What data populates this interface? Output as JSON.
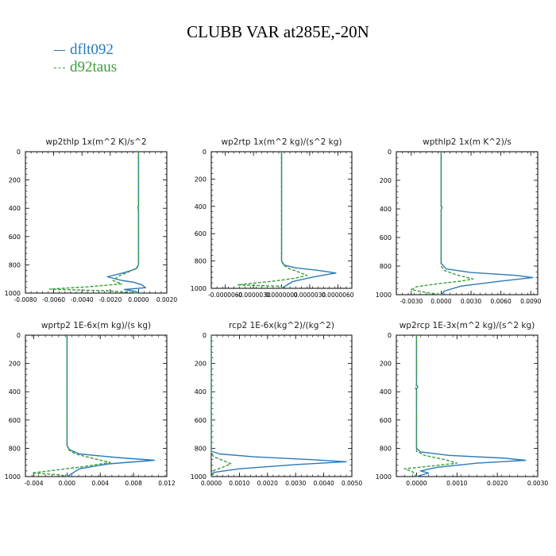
{
  "title": "CLUBB VAR at285E,-20N",
  "legend": [
    {
      "label": "dflt092",
      "color": "#2a7ab9"
    },
    {
      "label": "d92taus",
      "color": "#3a9e3a"
    }
  ],
  "chart_data": [
    {
      "type": "line",
      "title": "wp2thlp   1x(m^2 K)/s^2",
      "ylim": [
        1000,
        0
      ],
      "yticks": [
        "0",
        "200",
        "400",
        "600",
        "800",
        "1000"
      ],
      "xlim": [
        -0.008,
        0.002
      ],
      "xticks": [
        {
          "v": -0.008,
          "label": "-0.0080"
        },
        {
          "v": -0.006,
          "label": "-0.0060"
        },
        {
          "v": -0.004,
          "label": "-0.0040"
        },
        {
          "v": -0.002,
          "label": "-0.0020"
        },
        {
          "v": 0.0,
          "label": "0.0000"
        },
        {
          "v": 0.002,
          "label": "0.0020"
        }
      ],
      "series": [
        {
          "name": "dflt092",
          "points": [
            [
              0,
              0
            ],
            [
              0,
              380
            ],
            [
              -5e-05,
              395
            ],
            [
              0,
              410
            ],
            [
              0,
              800
            ],
            [
              -0.0002,
              830
            ],
            [
              -0.001,
              855
            ],
            [
              -0.0022,
              885
            ],
            [
              -0.0012,
              910
            ],
            [
              -0.0003,
              925
            ],
            [
              0.0002,
              940
            ],
            [
              0.0005,
              962
            ],
            [
              -0.001,
              975
            ],
            [
              -0.0002,
              988
            ],
            [
              0,
              1000
            ]
          ]
        },
        {
          "name": "d92taus",
          "points": [
            [
              0,
              0
            ],
            [
              0,
              800
            ],
            [
              -0.0001,
              820
            ],
            [
              -0.0007,
              850
            ],
            [
              -0.0014,
              880
            ],
            [
              -0.0018,
              912
            ],
            [
              -0.0012,
              935
            ],
            [
              -0.0035,
              955
            ],
            [
              -0.0063,
              972
            ],
            [
              -0.002,
              985
            ],
            [
              0,
              1000
            ]
          ]
        }
      ]
    },
    {
      "type": "line",
      "title": "wp2rtp   1x(m^2 kg)/(s^2 kg)",
      "ylim": [
        1000,
        0
      ],
      "yticks": [
        "0",
        "200",
        "400",
        "600",
        "800",
        "1000"
      ],
      "xlim": [
        -7.5e-06,
        7.5e-06
      ],
      "xticks": [
        {
          "v": -6e-06,
          "label": "-0.0000060"
        },
        {
          "v": -3e-06,
          "label": "-0.0000030"
        },
        {
          "v": 0.0,
          "label": "0.0000000"
        },
        {
          "v": 3e-06,
          "label": "0.0000030"
        },
        {
          "v": 6e-06,
          "label": "0.0000060"
        }
      ],
      "series": [
        {
          "name": "dflt092",
          "points": [
            [
              0,
              0
            ],
            [
              0,
              800
            ],
            [
              3e-07,
              830
            ],
            [
              1.5e-06,
              850
            ],
            [
              4e-06,
              870
            ],
            [
              5.8e-06,
              888
            ],
            [
              3.5e-06,
              915
            ],
            [
              1.2e-06,
              950
            ],
            [
              0,
              1000
            ]
          ]
        },
        {
          "name": "d92taus",
          "points": [
            [
              0,
              0
            ],
            [
              0,
              800
            ],
            [
              2e-07,
              830
            ],
            [
              8e-07,
              855
            ],
            [
              1.8e-06,
              880
            ],
            [
              2.7e-06,
              905
            ],
            [
              1.5e-06,
              925
            ],
            [
              -5e-07,
              945
            ],
            [
              -3e-06,
              962
            ],
            [
              -4.7e-06,
              975
            ],
            [
              0,
              985
            ],
            [
              0,
              1000
            ]
          ]
        }
      ]
    },
    {
      "type": "line",
      "title": "wpthlp2   1x(m K^2)/s",
      "ylim": [
        1000,
        0
      ],
      "yticks": [
        "0",
        "200",
        "400",
        "600",
        "800",
        "1000"
      ],
      "xlim": [
        -0.0045,
        0.0097
      ],
      "xticks": [
        {
          "v": -0.003,
          "label": "-0.0030"
        },
        {
          "v": 0.0,
          "label": "0.0000"
        },
        {
          "v": 0.003,
          "label": "0.0030"
        },
        {
          "v": 0.006,
          "label": "0.0060"
        },
        {
          "v": 0.009,
          "label": "0.0090"
        }
      ],
      "series": [
        {
          "name": "dflt092",
          "points": [
            [
              0,
              0
            ],
            [
              0,
              380
            ],
            [
              0.0001,
              390
            ],
            [
              0,
              405
            ],
            [
              0,
              780
            ],
            [
              0.0005,
              820
            ],
            [
              0.003,
              845
            ],
            [
              0.0075,
              865
            ],
            [
              0.0092,
              880
            ],
            [
              0.006,
              905
            ],
            [
              0.002,
              940
            ],
            [
              0.0003,
              975
            ],
            [
              0,
              1000
            ]
          ]
        },
        {
          "name": "d92taus",
          "points": [
            [
              0,
              0
            ],
            [
              0,
              800
            ],
            [
              0.0003,
              830
            ],
            [
              0.0015,
              860
            ],
            [
              0.0032,
              890
            ],
            [
              0.002,
              905
            ],
            [
              -0.0005,
              925
            ],
            [
              -0.0025,
              945
            ],
            [
              -0.003,
              965
            ],
            [
              -0.0015,
              985
            ],
            [
              0,
              1000
            ]
          ]
        }
      ]
    },
    {
      "type": "line",
      "title": "wprtp2   1E-6x(m kg)/(s kg)",
      "ylim": [
        1000,
        0
      ],
      "yticks": [
        "0",
        "200",
        "400",
        "600",
        "800",
        "1000"
      ],
      "xlim": [
        -0.005,
        0.012
      ],
      "xticks": [
        {
          "v": -0.004,
          "label": "-0.004"
        },
        {
          "v": 0.0,
          "label": "0.000"
        },
        {
          "v": 0.004,
          "label": "0.004"
        },
        {
          "v": 0.008,
          "label": "0.008"
        },
        {
          "v": 0.012,
          "label": "0.012"
        }
      ],
      "series": [
        {
          "name": "dflt092",
          "points": [
            [
              0,
              0
            ],
            [
              0,
              780
            ],
            [
              0.0003,
              810
            ],
            [
              0.0015,
              840
            ],
            [
              0.006,
              865
            ],
            [
              0.0105,
              885
            ],
            [
              0.005,
              910
            ],
            [
              0.0015,
              945
            ],
            [
              0,
              1000
            ]
          ]
        },
        {
          "name": "d92taus",
          "points": [
            [
              0,
              0
            ],
            [
              0,
              780
            ],
            [
              0.0002,
              810
            ],
            [
              0.001,
              840
            ],
            [
              0.003,
              870
            ],
            [
              0.0052,
              900
            ],
            [
              0.002,
              930
            ],
            [
              -0.0015,
              955
            ],
            [
              -0.0042,
              975
            ],
            [
              -0.0008,
              988
            ],
            [
              0,
              1000
            ]
          ]
        }
      ]
    },
    {
      "type": "line",
      "title": "rcp2   1E-6x(kg^2)/(kg^2)",
      "ylim": [
        1000,
        0
      ],
      "yticks": [
        "0",
        "200",
        "400",
        "600",
        "800",
        "1000"
      ],
      "xlim": [
        0.0,
        0.005
      ],
      "xticks": [
        {
          "v": 0.0,
          "label": "0.0000"
        },
        {
          "v": 0.001,
          "label": "0.0010"
        },
        {
          "v": 0.002,
          "label": "0.0020"
        },
        {
          "v": 0.003,
          "label": "0.0030"
        },
        {
          "v": 0.004,
          "label": "0.0040"
        },
        {
          "v": 0.005,
          "label": "0.0050"
        }
      ],
      "series": [
        {
          "name": "dflt092",
          "points": [
            [
              0,
              0
            ],
            [
              0,
              820
            ],
            [
              0.0003,
              840
            ],
            [
              0.0015,
              860
            ],
            [
              0.0035,
              880
            ],
            [
              0.0048,
              895
            ],
            [
              0.003,
              915
            ],
            [
              0.001,
              945
            ],
            [
              0.0001,
              970
            ],
            [
              0,
              1000
            ]
          ]
        },
        {
          "name": "d92taus",
          "points": [
            [
              0,
              0
            ],
            [
              0,
              840
            ],
            [
              0.0001,
              860
            ],
            [
              0.0004,
              885
            ],
            [
              0.0007,
              910
            ],
            [
              0.0004,
              935
            ],
            [
              0.0001,
              955
            ],
            [
              0,
              1000
            ]
          ]
        }
      ]
    },
    {
      "type": "line",
      "title": "wp2rcp   1E-3x(m^2 kg)/(s^2 kg)",
      "ylim": [
        1000,
        0
      ],
      "yticks": [
        "0",
        "200",
        "400",
        "600",
        "800",
        "1000"
      ],
      "xlim": [
        -0.0005,
        0.003
      ],
      "xticks": [
        {
          "v": 0.0,
          "label": "0.0000"
        },
        {
          "v": 0.001,
          "label": "0.0010"
        },
        {
          "v": 0.002,
          "label": "0.0020"
        },
        {
          "v": 0.003,
          "label": "0.0030"
        }
      ],
      "series": [
        {
          "name": "dflt092",
          "points": [
            [
              0,
              0
            ],
            [
              0,
              350
            ],
            [
              3e-05,
              365
            ],
            [
              0,
              380
            ],
            [
              0,
              800
            ],
            [
              0.0001,
              825
            ],
            [
              0.0008,
              850
            ],
            [
              0.0022,
              870
            ],
            [
              0.0027,
              885
            ],
            [
              0.0015,
              905
            ],
            [
              0.0005,
              935
            ],
            [
              0.0001,
              960
            ],
            [
              0.0003,
              975
            ],
            [
              0,
              1000
            ]
          ]
        },
        {
          "name": "d92taus",
          "points": [
            [
              0,
              0
            ],
            [
              0,
              350
            ],
            [
              -3e-05,
              370
            ],
            [
              0,
              390
            ],
            [
              0,
              820
            ],
            [
              0.0002,
              850
            ],
            [
              0.0007,
              880
            ],
            [
              0.001,
              905
            ],
            [
              0.0004,
              925
            ],
            [
              -0.0003,
              945
            ],
            [
              -0.0001,
              965
            ],
            [
              0,
              1000
            ]
          ]
        }
      ]
    }
  ]
}
